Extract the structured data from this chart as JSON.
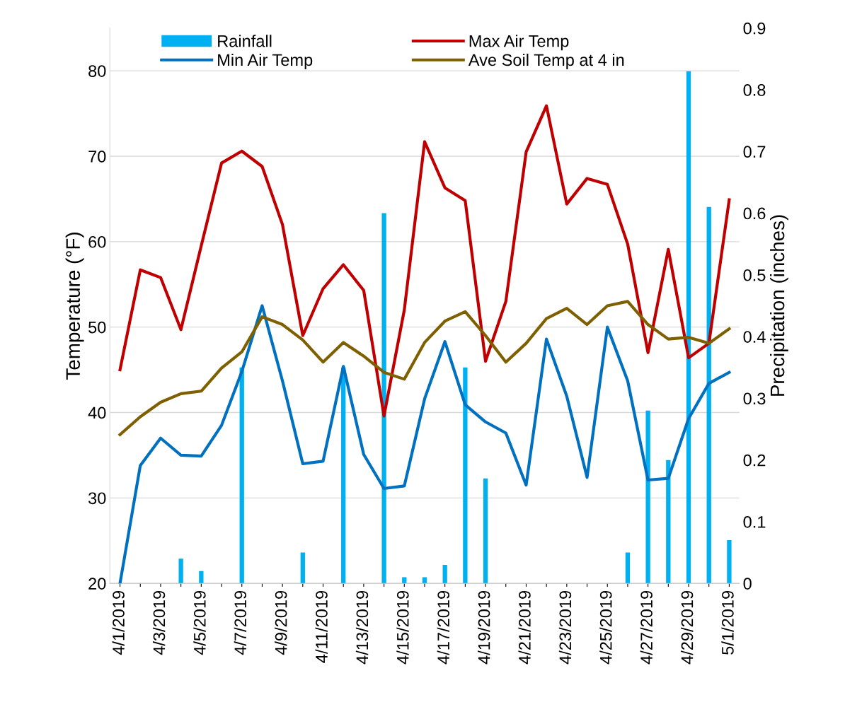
{
  "chart_data": {
    "type": "line",
    "ylabel": "Temperature (°F)",
    "y2label": "Precipitation (inches)",
    "categories": [
      "4/1/2019",
      null,
      "4/3/2019",
      null,
      "4/5/2019",
      null,
      "4/7/2019",
      null,
      "4/9/2019",
      null,
      "4/11/2019",
      null,
      "4/13/2019",
      null,
      "4/15/2019",
      null,
      "4/17/2019",
      null,
      "4/19/2019",
      null,
      "4/21/2019",
      null,
      "4/23/2019",
      null,
      "4/25/2019",
      null,
      "4/27/2019",
      null,
      "4/29/2019",
      null,
      "5/1/2019"
    ],
    "series": [
      {
        "name": "Rainfall",
        "type": "bar",
        "axis": "y2",
        "color": "#00b0f0",
        "values": [
          0,
          0,
          0,
          0.04,
          0.02,
          0,
          0.35,
          0,
          0,
          0.05,
          0,
          0.35,
          0,
          0.6,
          0.01,
          0.01,
          0.03,
          0.35,
          0.17,
          0,
          0,
          0,
          0,
          0,
          0,
          0.05,
          0.28,
          0.2,
          0.83,
          0.61,
          0.07
        ]
      },
      {
        "name": "Max Air Temp",
        "color": "#c00000",
        "values": [
          45.0,
          56.7,
          55.8,
          49.7,
          59.5,
          69.2,
          70.6,
          68.8,
          62.0,
          49.0,
          54.5,
          57.3,
          54.3,
          39.6,
          52.0,
          71.7,
          66.3,
          64.8,
          46.0,
          53.0,
          70.5,
          75.9,
          64.4,
          67.4,
          66.7,
          59.7,
          47.0,
          59.1,
          46.4,
          48.1,
          64.9
        ]
      },
      {
        "name": "Min Air Temp",
        "color": "#0070c0",
        "values": [
          20.0,
          33.8,
          37.0,
          35.0,
          34.9,
          38.5,
          44.8,
          52.5,
          43.7,
          34.0,
          34.3,
          45.4,
          35.1,
          31.1,
          31.4,
          41.6,
          48.3,
          40.9,
          38.9,
          37.6,
          31.5,
          48.6,
          41.9,
          32.4,
          50.0,
          43.7,
          32.1,
          32.3,
          39.3,
          43.4,
          44.7
        ]
      },
      {
        "name": "Ave Soil Temp at 4 in",
        "color": "#7f6000",
        "values": [
          37.4,
          39.5,
          41.2,
          42.2,
          42.5,
          45.2,
          47.1,
          51.2,
          50.3,
          48.5,
          45.9,
          48.2,
          46.6,
          44.7,
          43.9,
          48.2,
          50.7,
          51.8,
          49.0,
          45.9,
          48.1,
          51.0,
          52.2,
          50.3,
          52.5,
          53.0,
          50.3,
          48.6,
          48.8,
          48.1,
          49.8
        ]
      }
    ],
    "ylim": [
      20,
      85
    ],
    "yticks": [
      20,
      30,
      40,
      50,
      60,
      70,
      80
    ],
    "y2lim": [
      0,
      0.9
    ],
    "y2ticks": [
      0,
      0.1,
      0.2,
      0.3,
      0.4,
      0.5,
      0.6,
      0.7,
      0.8,
      0.9
    ],
    "grid": "y",
    "legend": "top",
    "marker": "none",
    "line_style": "solid"
  }
}
